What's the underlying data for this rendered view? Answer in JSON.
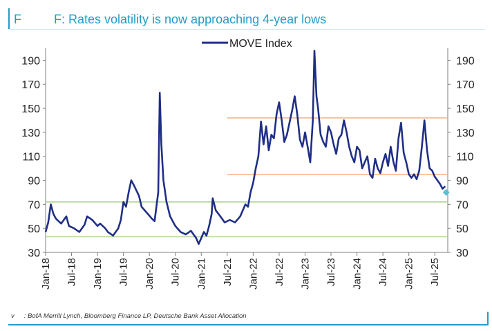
{
  "header": {
    "figure_label": "F",
    "title": "F: Rates volatility is now approaching 4-year lows"
  },
  "footer": {
    "marker": "v",
    "source": ": BofA Merrill Lynch, Bloomberg Finance LP, Deutsche Bank Asset Allocation"
  },
  "colors": {
    "accent": "#1f9dc6",
    "series": "#1f2e86",
    "orange_band": "#f4b183",
    "green_band": "#a9d08e",
    "marker": "#5bbfd6"
  },
  "chart_data": {
    "type": "line",
    "title": "F: Rates volatility is now approaching 4-year lows",
    "xlabel": "",
    "ylabel": "",
    "ylim": [
      30,
      200
    ],
    "yticks": [
      30,
      50,
      70,
      90,
      110,
      130,
      150,
      170,
      190
    ],
    "xlim": [
      2018.0,
      2025.75
    ],
    "xticks": [
      {
        "x": 2018.0,
        "label": "Jan-18"
      },
      {
        "x": 2018.5,
        "label": "Jul-18"
      },
      {
        "x": 2019.0,
        "label": "Jan-19"
      },
      {
        "x": 2019.5,
        "label": "Jul-19"
      },
      {
        "x": 2020.0,
        "label": "Jan-20"
      },
      {
        "x": 2020.5,
        "label": "Jul-20"
      },
      {
        "x": 2021.0,
        "label": "Jan-21"
      },
      {
        "x": 2021.5,
        "label": "Jul-21"
      },
      {
        "x": 2022.0,
        "label": "Jan-22"
      },
      {
        "x": 2022.5,
        "label": "Jul-22"
      },
      {
        "x": 2023.0,
        "label": "Jan-23"
      },
      {
        "x": 2023.5,
        "label": "Jul-23"
      },
      {
        "x": 2024.0,
        "label": "Jan-24"
      },
      {
        "x": 2024.5,
        "label": "Jul-24"
      },
      {
        "x": 2025.0,
        "label": "Jan-25"
      },
      {
        "x": 2025.5,
        "label": "Jul-25"
      }
    ],
    "legend": {
      "label": "MOVE Index",
      "position": "top-center"
    },
    "series": [
      {
        "name": "MOVE Index",
        "points": [
          [
            2018.0,
            47
          ],
          [
            2018.05,
            55
          ],
          [
            2018.1,
            70
          ],
          [
            2018.15,
            62
          ],
          [
            2018.2,
            58
          ],
          [
            2018.3,
            54
          ],
          [
            2018.4,
            60
          ],
          [
            2018.45,
            52
          ],
          [
            2018.55,
            50
          ],
          [
            2018.65,
            47
          ],
          [
            2018.75,
            53
          ],
          [
            2018.8,
            60
          ],
          [
            2018.9,
            57
          ],
          [
            2019.0,
            52
          ],
          [
            2019.05,
            54
          ],
          [
            2019.15,
            50
          ],
          [
            2019.2,
            47
          ],
          [
            2019.3,
            44
          ],
          [
            2019.4,
            50
          ],
          [
            2019.45,
            57
          ],
          [
            2019.5,
            72
          ],
          [
            2019.55,
            68
          ],
          [
            2019.6,
            80
          ],
          [
            2019.65,
            90
          ],
          [
            2019.7,
            86
          ],
          [
            2019.8,
            77
          ],
          [
            2019.85,
            68
          ],
          [
            2019.95,
            63
          ],
          [
            2020.05,
            58
          ],
          [
            2020.1,
            56
          ],
          [
            2020.17,
            80
          ],
          [
            2020.2,
            163
          ],
          [
            2020.23,
            120
          ],
          [
            2020.27,
            90
          ],
          [
            2020.33,
            72
          ],
          [
            2020.4,
            60
          ],
          [
            2020.5,
            52
          ],
          [
            2020.6,
            47
          ],
          [
            2020.7,
            45
          ],
          [
            2020.8,
            48
          ],
          [
            2020.9,
            42
          ],
          [
            2020.95,
            37
          ],
          [
            2021.0,
            42
          ],
          [
            2021.05,
            47
          ],
          [
            2021.1,
            44
          ],
          [
            2021.15,
            52
          ],
          [
            2021.2,
            62
          ],
          [
            2021.22,
            75
          ],
          [
            2021.28,
            65
          ],
          [
            2021.35,
            61
          ],
          [
            2021.45,
            55
          ],
          [
            2021.55,
            57
          ],
          [
            2021.65,
            55
          ],
          [
            2021.75,
            60
          ],
          [
            2021.85,
            70
          ],
          [
            2021.9,
            68
          ],
          [
            2021.95,
            80
          ],
          [
            2022.0,
            88
          ],
          [
            2022.05,
            100
          ],
          [
            2022.1,
            110
          ],
          [
            2022.15,
            139
          ],
          [
            2022.2,
            120
          ],
          [
            2022.25,
            135
          ],
          [
            2022.3,
            115
          ],
          [
            2022.35,
            128
          ],
          [
            2022.4,
            125
          ],
          [
            2022.45,
            145
          ],
          [
            2022.5,
            155
          ],
          [
            2022.55,
            140
          ],
          [
            2022.6,
            122
          ],
          [
            2022.65,
            128
          ],
          [
            2022.75,
            148
          ],
          [
            2022.8,
            160
          ],
          [
            2022.85,
            145
          ],
          [
            2022.9,
            124
          ],
          [
            2022.95,
            118
          ],
          [
            2023.0,
            130
          ],
          [
            2023.05,
            118
          ],
          [
            2023.1,
            105
          ],
          [
            2023.15,
            140
          ],
          [
            2023.18,
            198
          ],
          [
            2023.22,
            160
          ],
          [
            2023.25,
            150
          ],
          [
            2023.3,
            128
          ],
          [
            2023.35,
            122
          ],
          [
            2023.4,
            118
          ],
          [
            2023.45,
            135
          ],
          [
            2023.5,
            130
          ],
          [
            2023.55,
            120
          ],
          [
            2023.6,
            112
          ],
          [
            2023.65,
            125
          ],
          [
            2023.7,
            128
          ],
          [
            2023.75,
            140
          ],
          [
            2023.8,
            130
          ],
          [
            2023.85,
            118
          ],
          [
            2023.9,
            110
          ],
          [
            2023.95,
            105
          ],
          [
            2024.0,
            118
          ],
          [
            2024.05,
            115
          ],
          [
            2024.1,
            100
          ],
          [
            2024.15,
            105
          ],
          [
            2024.2,
            110
          ],
          [
            2024.25,
            95
          ],
          [
            2024.3,
            92
          ],
          [
            2024.35,
            108
          ],
          [
            2024.4,
            100
          ],
          [
            2024.45,
            96
          ],
          [
            2024.5,
            105
          ],
          [
            2024.55,
            112
          ],
          [
            2024.6,
            102
          ],
          [
            2024.65,
            118
          ],
          [
            2024.7,
            106
          ],
          [
            2024.75,
            98
          ],
          [
            2024.8,
            125
          ],
          [
            2024.85,
            138
          ],
          [
            2024.9,
            113
          ],
          [
            2024.95,
            105
          ],
          [
            2025.0,
            95
          ],
          [
            2025.05,
            92
          ],
          [
            2025.1,
            95
          ],
          [
            2025.15,
            91
          ],
          [
            2025.2,
            98
          ],
          [
            2025.25,
            118
          ],
          [
            2025.3,
            140
          ],
          [
            2025.35,
            115
          ],
          [
            2025.4,
            100
          ],
          [
            2025.45,
            98
          ],
          [
            2025.5,
            93
          ],
          [
            2025.55,
            90
          ],
          [
            2025.6,
            87
          ],
          [
            2025.65,
            83
          ],
          [
            2025.7,
            85
          ]
        ]
      }
    ],
    "latest_point": {
      "x": 2025.72,
      "y": 80
    },
    "reference_bands": {
      "orange": {
        "start_x": 2021.5,
        "levels": [
          95,
          142
        ]
      },
      "green": {
        "start_x": 2018.0,
        "levels": [
          43,
          72
        ]
      }
    }
  }
}
